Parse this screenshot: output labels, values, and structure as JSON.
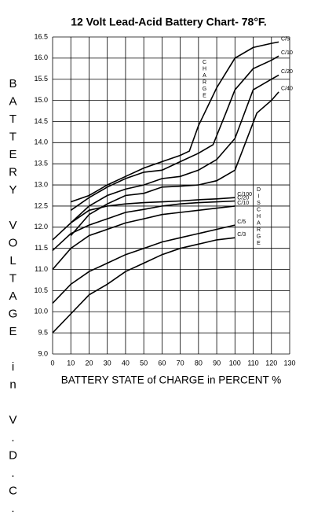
{
  "chart_data": {
    "type": "line",
    "title": "12 Volt Lead-Acid Battery Chart- 78°F.",
    "x_label": "BATTERY STATE of CHARGE in PERCENT %",
    "y_label": "BATTERY VOLTAGE in V.D.C.",
    "charge_label": "CHARGE",
    "discharge_label": "DISCHARGE",
    "xlim": [
      0,
      130
    ],
    "xticks": [
      0,
      10,
      20,
      30,
      40,
      50,
      60,
      70,
      80,
      90,
      100,
      110,
      120,
      130
    ],
    "ylim": [
      9,
      16.5
    ],
    "yticks": [
      {
        "value": 9,
        "label": "9.0"
      },
      9.5,
      {
        "value": 10,
        "label": "10.0"
      },
      10.5,
      {
        "value": 11,
        "label": "11.0"
      },
      11.5,
      {
        "value": 12,
        "label": "12.0"
      },
      12.5,
      {
        "value": 13,
        "label": "13.0"
      },
      13.5,
      {
        "value": 14,
        "label": "14.0"
      },
      14.5,
      {
        "value": 15,
        "label": "15.0"
      },
      15.5,
      {
        "value": 16,
        "label": "16.0"
      },
      16.5
    ],
    "grid": true,
    "series": [
      {
        "name": "C/5",
        "color": "#000000",
        "x": [
          10,
          20,
          30,
          40,
          50,
          60,
          70,
          75,
          80,
          90,
          100,
          110,
          120,
          124
        ],
        "values": [
          12.6,
          12.75,
          13.0,
          13.2,
          13.4,
          13.55,
          13.7,
          13.8,
          14.4,
          15.3,
          16.0,
          16.25,
          16.35,
          16.38
        ]
      },
      {
        "name": "C/10",
        "color": "#000000",
        "x": [
          10,
          20,
          30,
          40,
          50,
          60,
          70,
          80,
          88,
          95,
          100,
          110,
          120,
          124
        ],
        "values": [
          12.4,
          12.7,
          12.95,
          13.15,
          13.3,
          13.35,
          13.55,
          13.75,
          13.95,
          14.7,
          15.25,
          15.75,
          15.95,
          16.05
        ]
      },
      {
        "name": "C/20",
        "color": "#000000",
        "x": [
          10,
          20,
          30,
          40,
          50,
          60,
          70,
          80,
          90,
          100,
          110,
          120,
          124
        ],
        "values": [
          12.1,
          12.5,
          12.75,
          12.9,
          13.0,
          13.15,
          13.2,
          13.35,
          13.6,
          14.1,
          15.25,
          15.5,
          15.6
        ]
      },
      {
        "name": "C/40",
        "color": "#000000",
        "x": [
          10,
          20,
          30,
          40,
          50,
          60,
          70,
          80,
          90,
          100,
          112,
          120,
          124
        ],
        "values": [
          11.8,
          12.3,
          12.55,
          12.75,
          12.8,
          12.95,
          12.97,
          13.0,
          13.1,
          13.35,
          14.7,
          15.0,
          15.2
        ]
      },
      {
        "name": "C/100",
        "color": "#000000",
        "x": [
          0,
          10,
          20,
          30,
          40,
          50,
          60,
          70,
          80,
          90,
          100
        ],
        "values": [
          11.7,
          12.1,
          12.4,
          12.5,
          12.55,
          12.58,
          12.6,
          12.62,
          12.65,
          12.67,
          12.7
        ]
      },
      {
        "name": "C/20",
        "color": "#000000",
        "x": [
          0,
          10,
          20,
          30,
          40,
          50,
          60,
          70,
          80,
          90,
          100
        ],
        "values": [
          11.45,
          11.85,
          12.05,
          12.2,
          12.35,
          12.42,
          12.5,
          12.55,
          12.58,
          12.6,
          12.62
        ]
      },
      {
        "name": "C/10",
        "color": "#000000",
        "x": [
          0,
          10,
          20,
          30,
          40,
          50,
          60,
          70,
          80,
          90,
          100
        ],
        "values": [
          11.0,
          11.5,
          11.8,
          11.95,
          12.1,
          12.2,
          12.3,
          12.35,
          12.4,
          12.45,
          12.5
        ]
      },
      {
        "name": "C/5",
        "color": "#000000",
        "x": [
          0,
          10,
          20,
          30,
          40,
          50,
          60,
          70,
          80,
          90,
          100
        ],
        "values": [
          10.2,
          10.65,
          10.95,
          11.15,
          11.35,
          11.5,
          11.65,
          11.75,
          11.85,
          11.95,
          12.05
        ]
      },
      {
        "name": "C/3",
        "color": "#000000",
        "x": [
          0,
          10,
          20,
          30,
          40,
          50,
          60,
          70,
          80,
          90,
          100
        ],
        "values": [
          9.5,
          9.95,
          10.4,
          10.65,
          10.95,
          11.15,
          11.35,
          11.5,
          11.6,
          11.7,
          11.75
        ]
      }
    ]
  }
}
